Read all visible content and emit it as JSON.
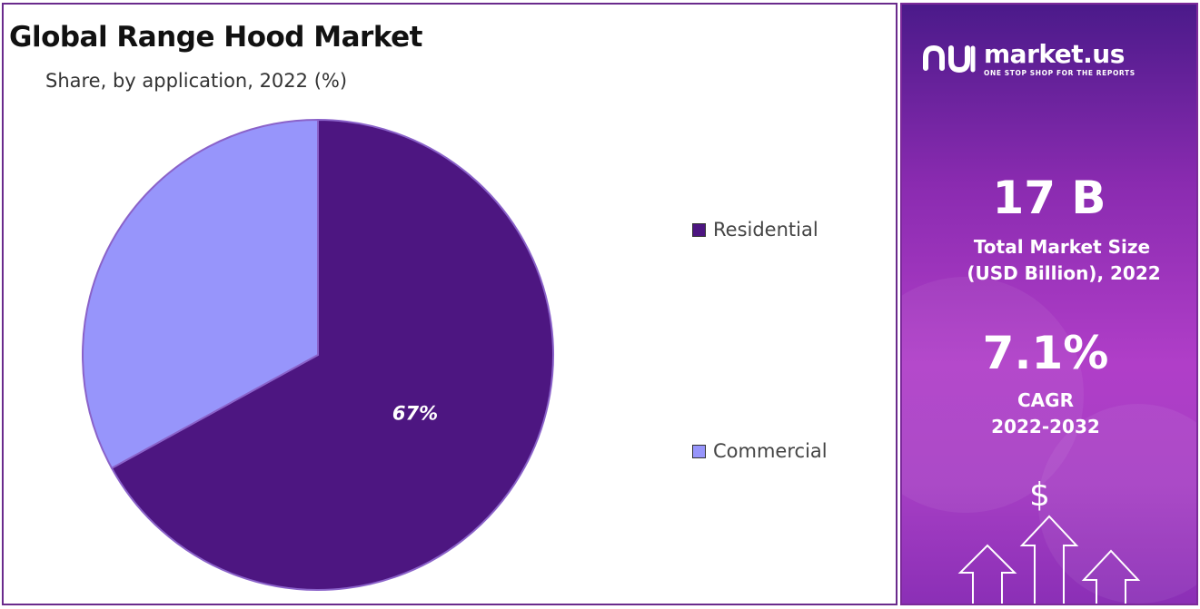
{
  "chart_data": {
    "type": "pie",
    "title": "Global Range Hood Market",
    "subtitle": "Share, by application, 2022 (%)",
    "slices": [
      {
        "label": "Residential",
        "value": 67,
        "color": "#4d1681",
        "data_label": "67%"
      },
      {
        "label": "Commercial",
        "value": 33,
        "color": "#9795fb",
        "data_label": ""
      }
    ],
    "legend_position": "right"
  },
  "brand": {
    "name": "market.us",
    "tagline": "ONE STOP SHOP FOR THE REPORTS"
  },
  "stats": {
    "market_size_value": "17 B",
    "market_size_label_1": "Total Market Size",
    "market_size_label_2": "(USD Billion), 2022",
    "cagr_value": "7.1%",
    "cagr_label": "CAGR",
    "cagr_period": "2022-2032"
  },
  "decor": {
    "dollar_symbol": "$"
  }
}
